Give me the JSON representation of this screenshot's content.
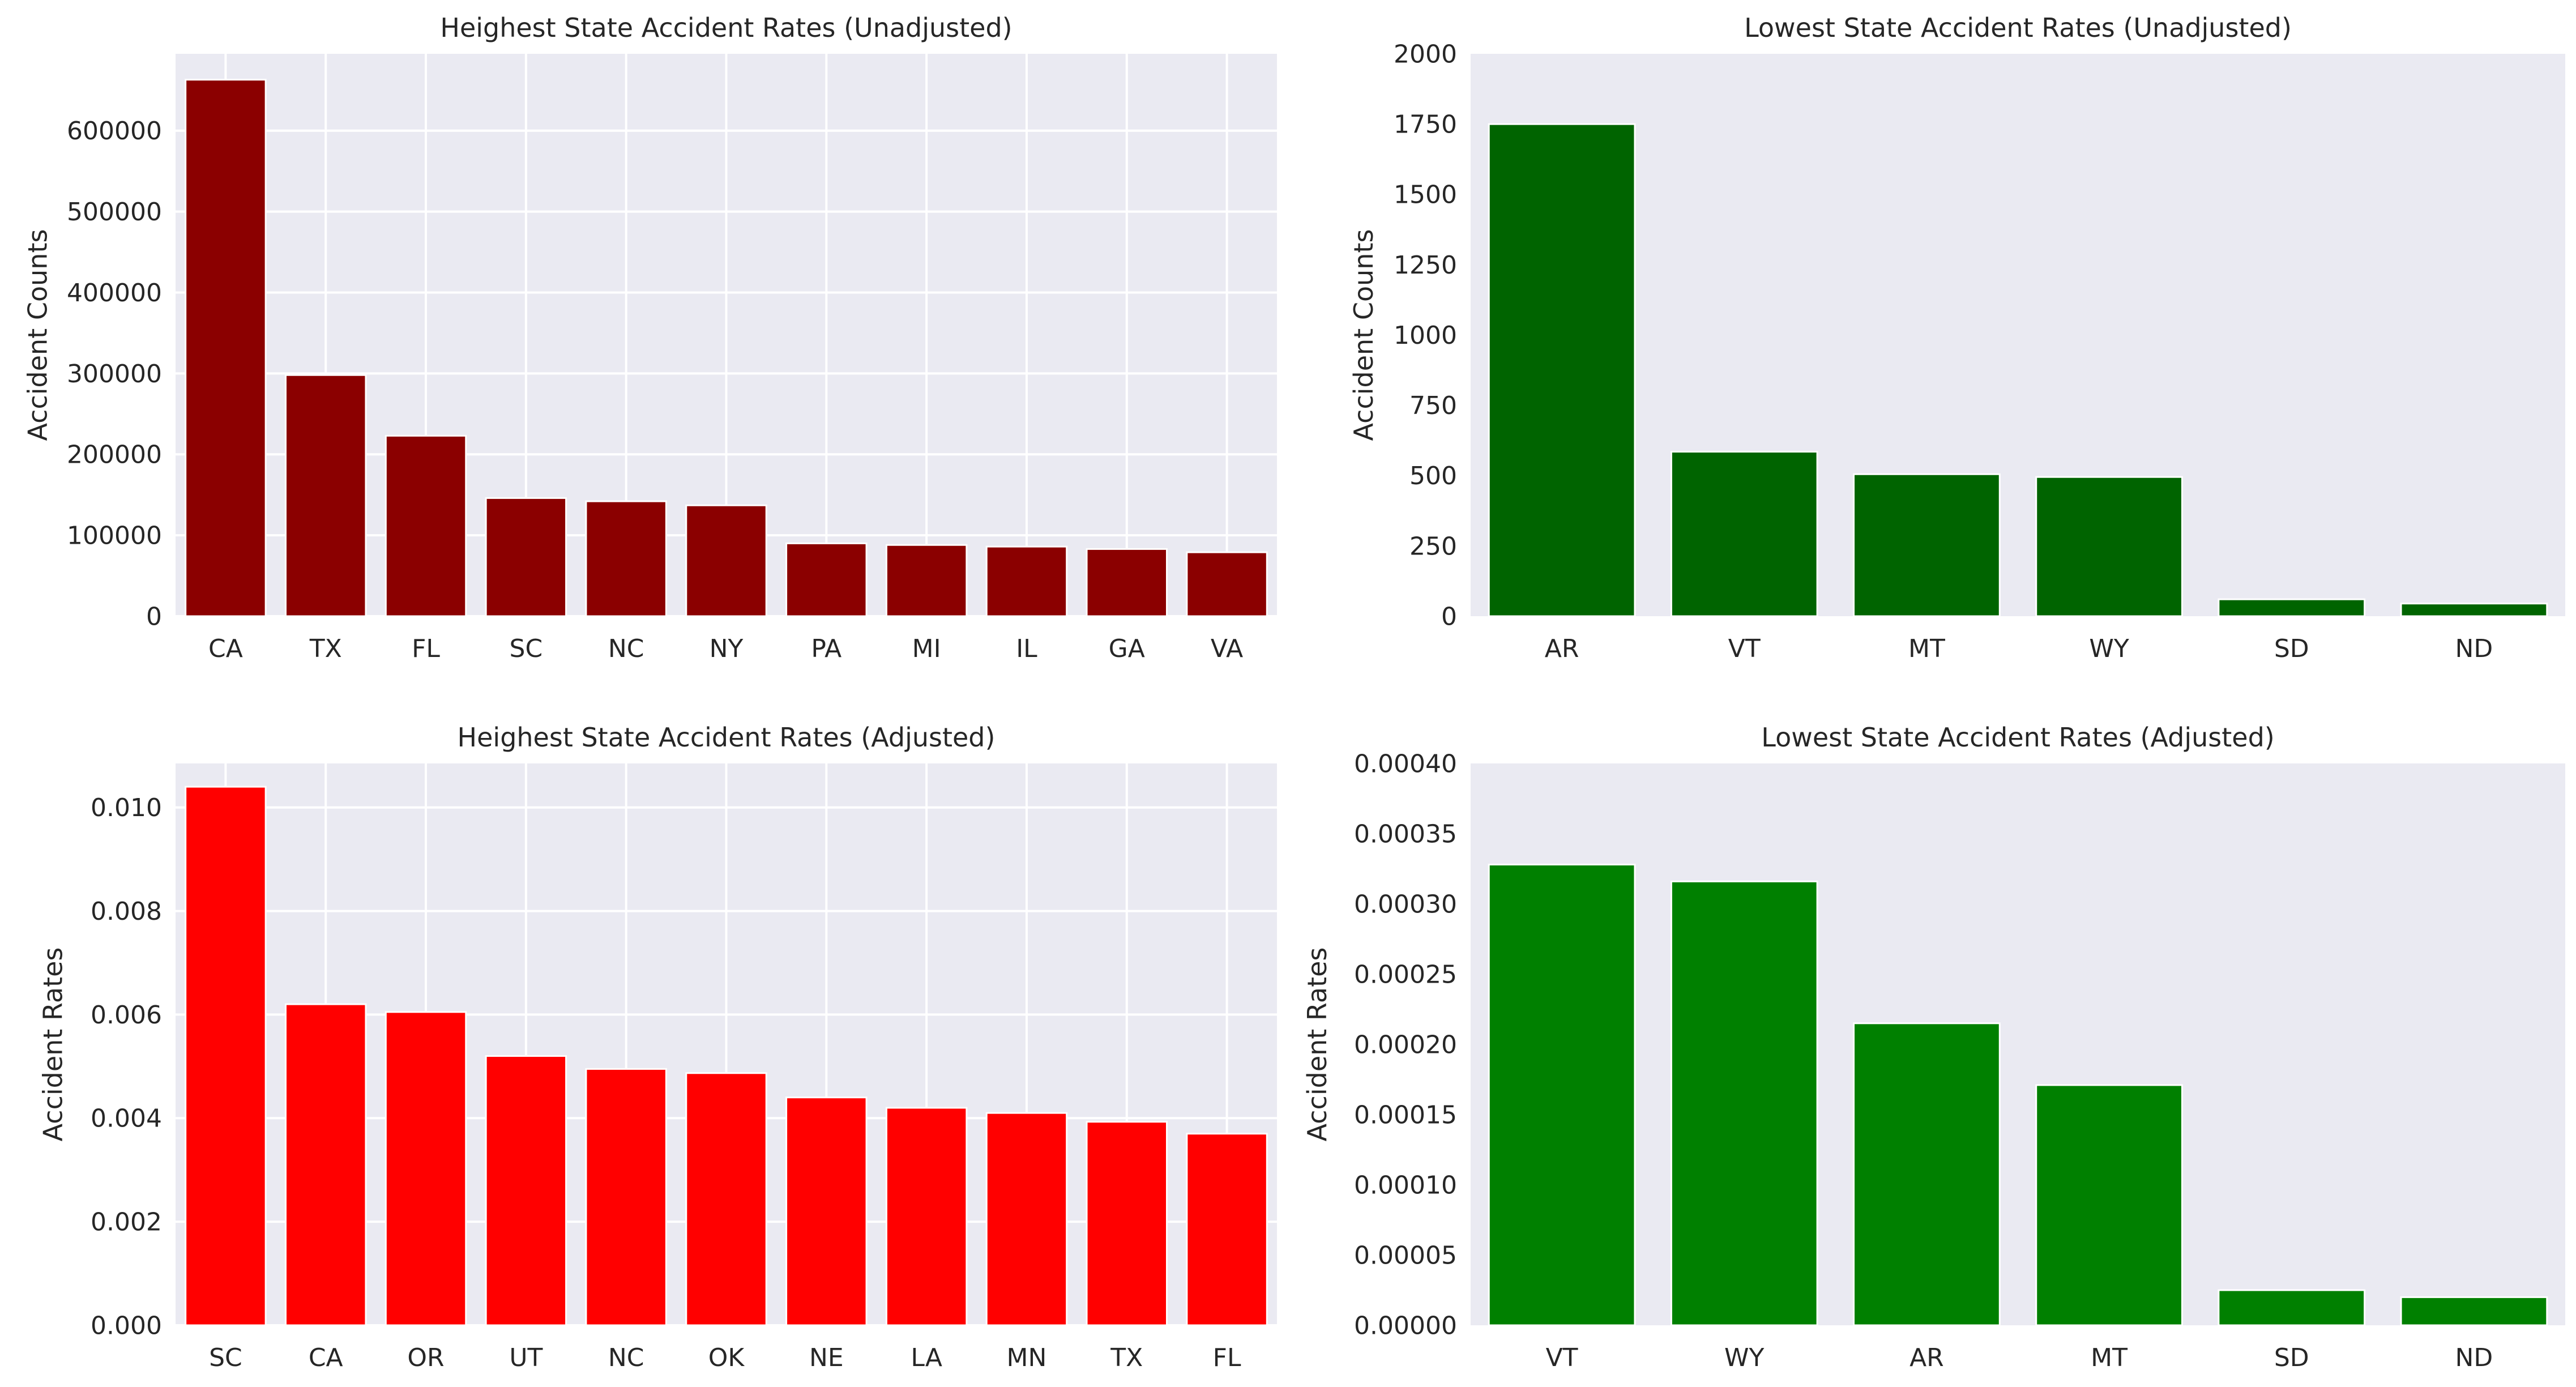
{
  "figure": {
    "background": "#ffffff",
    "axes_bg": "#eaeaf2",
    "grid_color": "#ffffff",
    "text_color": "#262626"
  },
  "chart_data": [
    {
      "type": "bar",
      "title": "Heighest State Accident Rates (Unadjusted)",
      "xlabel": "",
      "ylabel": "Accident Counts",
      "color": "#8b0000",
      "categories": [
        "CA",
        "TX",
        "FL",
        "SC",
        "NC",
        "NY",
        "PA",
        "MI",
        "IL",
        "GA",
        "VA"
      ],
      "values": [
        663000,
        298000,
        223000,
        146000,
        142000,
        137000,
        90000,
        88000,
        86000,
        83000,
        79000
      ],
      "ylim": [
        0,
        695000
      ],
      "yticks": [
        0,
        100000,
        200000,
        300000,
        400000,
        500000,
        600000
      ],
      "ytick_labels": [
        "0",
        "100000",
        "200000",
        "300000",
        "400000",
        "500000",
        "600000"
      ],
      "grid": true
    },
    {
      "type": "bar",
      "title": "Lowest State Accident Rates (Unadjusted)",
      "xlabel": "",
      "ylabel": "Accident Counts",
      "color": "#006400",
      "categories": [
        "AR",
        "VT",
        "MT",
        "WY",
        "SD",
        "ND"
      ],
      "values": [
        1750,
        585,
        505,
        495,
        60,
        45
      ],
      "ylim": [
        0,
        2000
      ],
      "yticks": [
        0,
        250,
        500,
        750,
        1000,
        1250,
        1500,
        1750,
        2000
      ],
      "ytick_labels": [
        "0",
        "250",
        "500",
        "750",
        "1000",
        "1250",
        "1500",
        "1750",
        "2000"
      ],
      "grid": false
    },
    {
      "type": "bar",
      "title": "Heighest State Accident Rates (Adjusted)",
      "xlabel": "",
      "ylabel": "Accident Rates",
      "color": "#ff0000",
      "categories": [
        "SC",
        "CA",
        "OR",
        "UT",
        "NC",
        "OK",
        "NE",
        "LA",
        "MN",
        "TX",
        "FL"
      ],
      "values": [
        0.0104,
        0.0062,
        0.00605,
        0.0052,
        0.00495,
        0.00487,
        0.0044,
        0.0042,
        0.0041,
        0.00393,
        0.0037
      ],
      "ylim": [
        0,
        0.01085
      ],
      "yticks": [
        0,
        0.002,
        0.004,
        0.006,
        0.008,
        0.01
      ],
      "ytick_labels": [
        "0.000",
        "0.002",
        "0.004",
        "0.006",
        "0.008",
        "0.010"
      ],
      "grid": true
    },
    {
      "type": "bar",
      "title": "Lowest State Accident Rates (Adjusted)",
      "xlabel": "",
      "ylabel": "Accident Rates",
      "color": "#008000",
      "categories": [
        "VT",
        "WY",
        "AR",
        "MT",
        "SD",
        "ND"
      ],
      "values": [
        0.000328,
        0.000316,
        0.000215,
        0.000171,
        2.5e-05,
        2e-05
      ],
      "ylim": [
        0,
        0.0004
      ],
      "yticks": [
        0,
        5e-05,
        0.0001,
        0.00015,
        0.0002,
        0.00025,
        0.0003,
        0.00035,
        0.0004
      ],
      "ytick_labels": [
        "0.00000",
        "0.00005",
        "0.00010",
        "0.00015",
        "0.00020",
        "0.00025",
        "0.00030",
        "0.00035",
        "0.00040"
      ],
      "grid": false
    }
  ]
}
